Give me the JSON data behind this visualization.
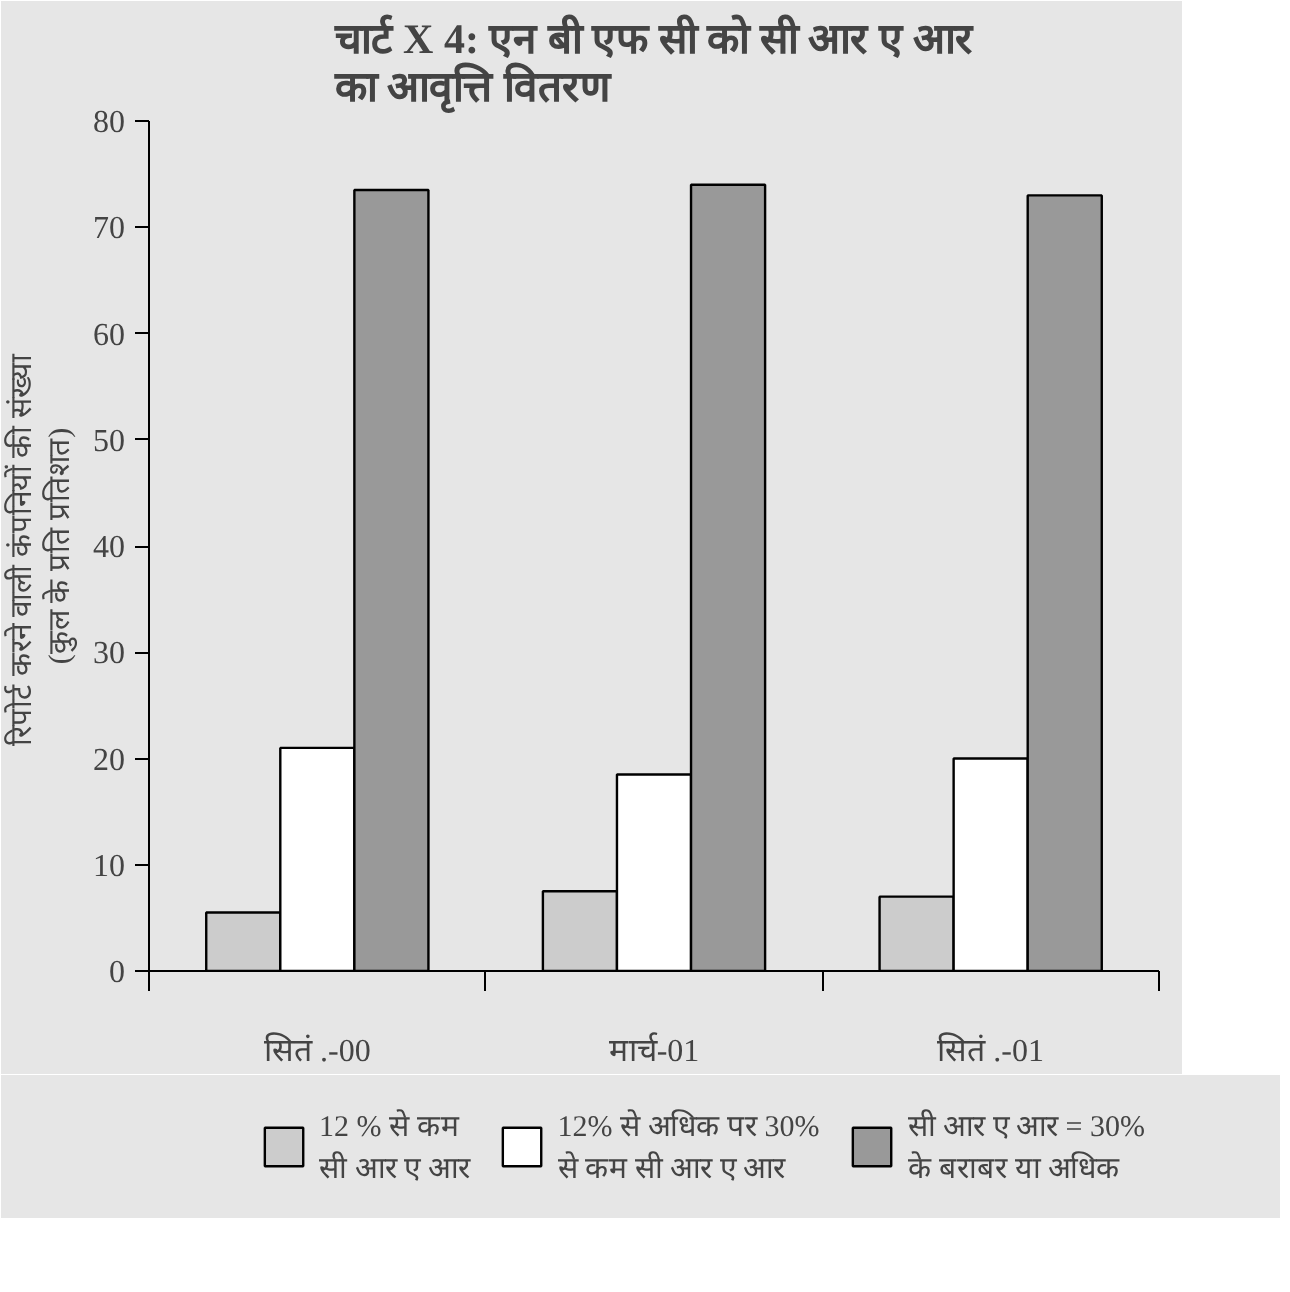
{
  "chart_data": {
    "type": "bar",
    "title": "चार्ट X 4: एन बी एफ सी को सी आर ए आर\nका आवृत्ति वितरण",
    "ylabel": "रिपोर्ट करने वाली  कंपनियों की संख्या\n(कुल के प्रति प्रतिशत)",
    "categories": [
      "सितं .-00",
      "मार्च-01",
      "सितं .-01"
    ],
    "series": [
      {
        "name": "12 % से कम\nसी आर ए आर",
        "color": "#cccccc",
        "values": [
          5.5,
          7.5,
          7
        ]
      },
      {
        "name": "12% से अधिक पर 30%\nसे कम सी आर ए आर",
        "color": "#ffffff",
        "values": [
          21,
          18.5,
          20
        ]
      },
      {
        "name": "सी आर ए आर = 30%\nके बराबर या अधिक",
        "color": "#999999",
        "values": [
          73.5,
          74,
          73
        ]
      }
    ],
    "ylim": [
      0,
      80
    ],
    "yticks": [
      0,
      10,
      20,
      30,
      40,
      50,
      60,
      70,
      80
    ],
    "grid": false,
    "legend": "bottom"
  }
}
